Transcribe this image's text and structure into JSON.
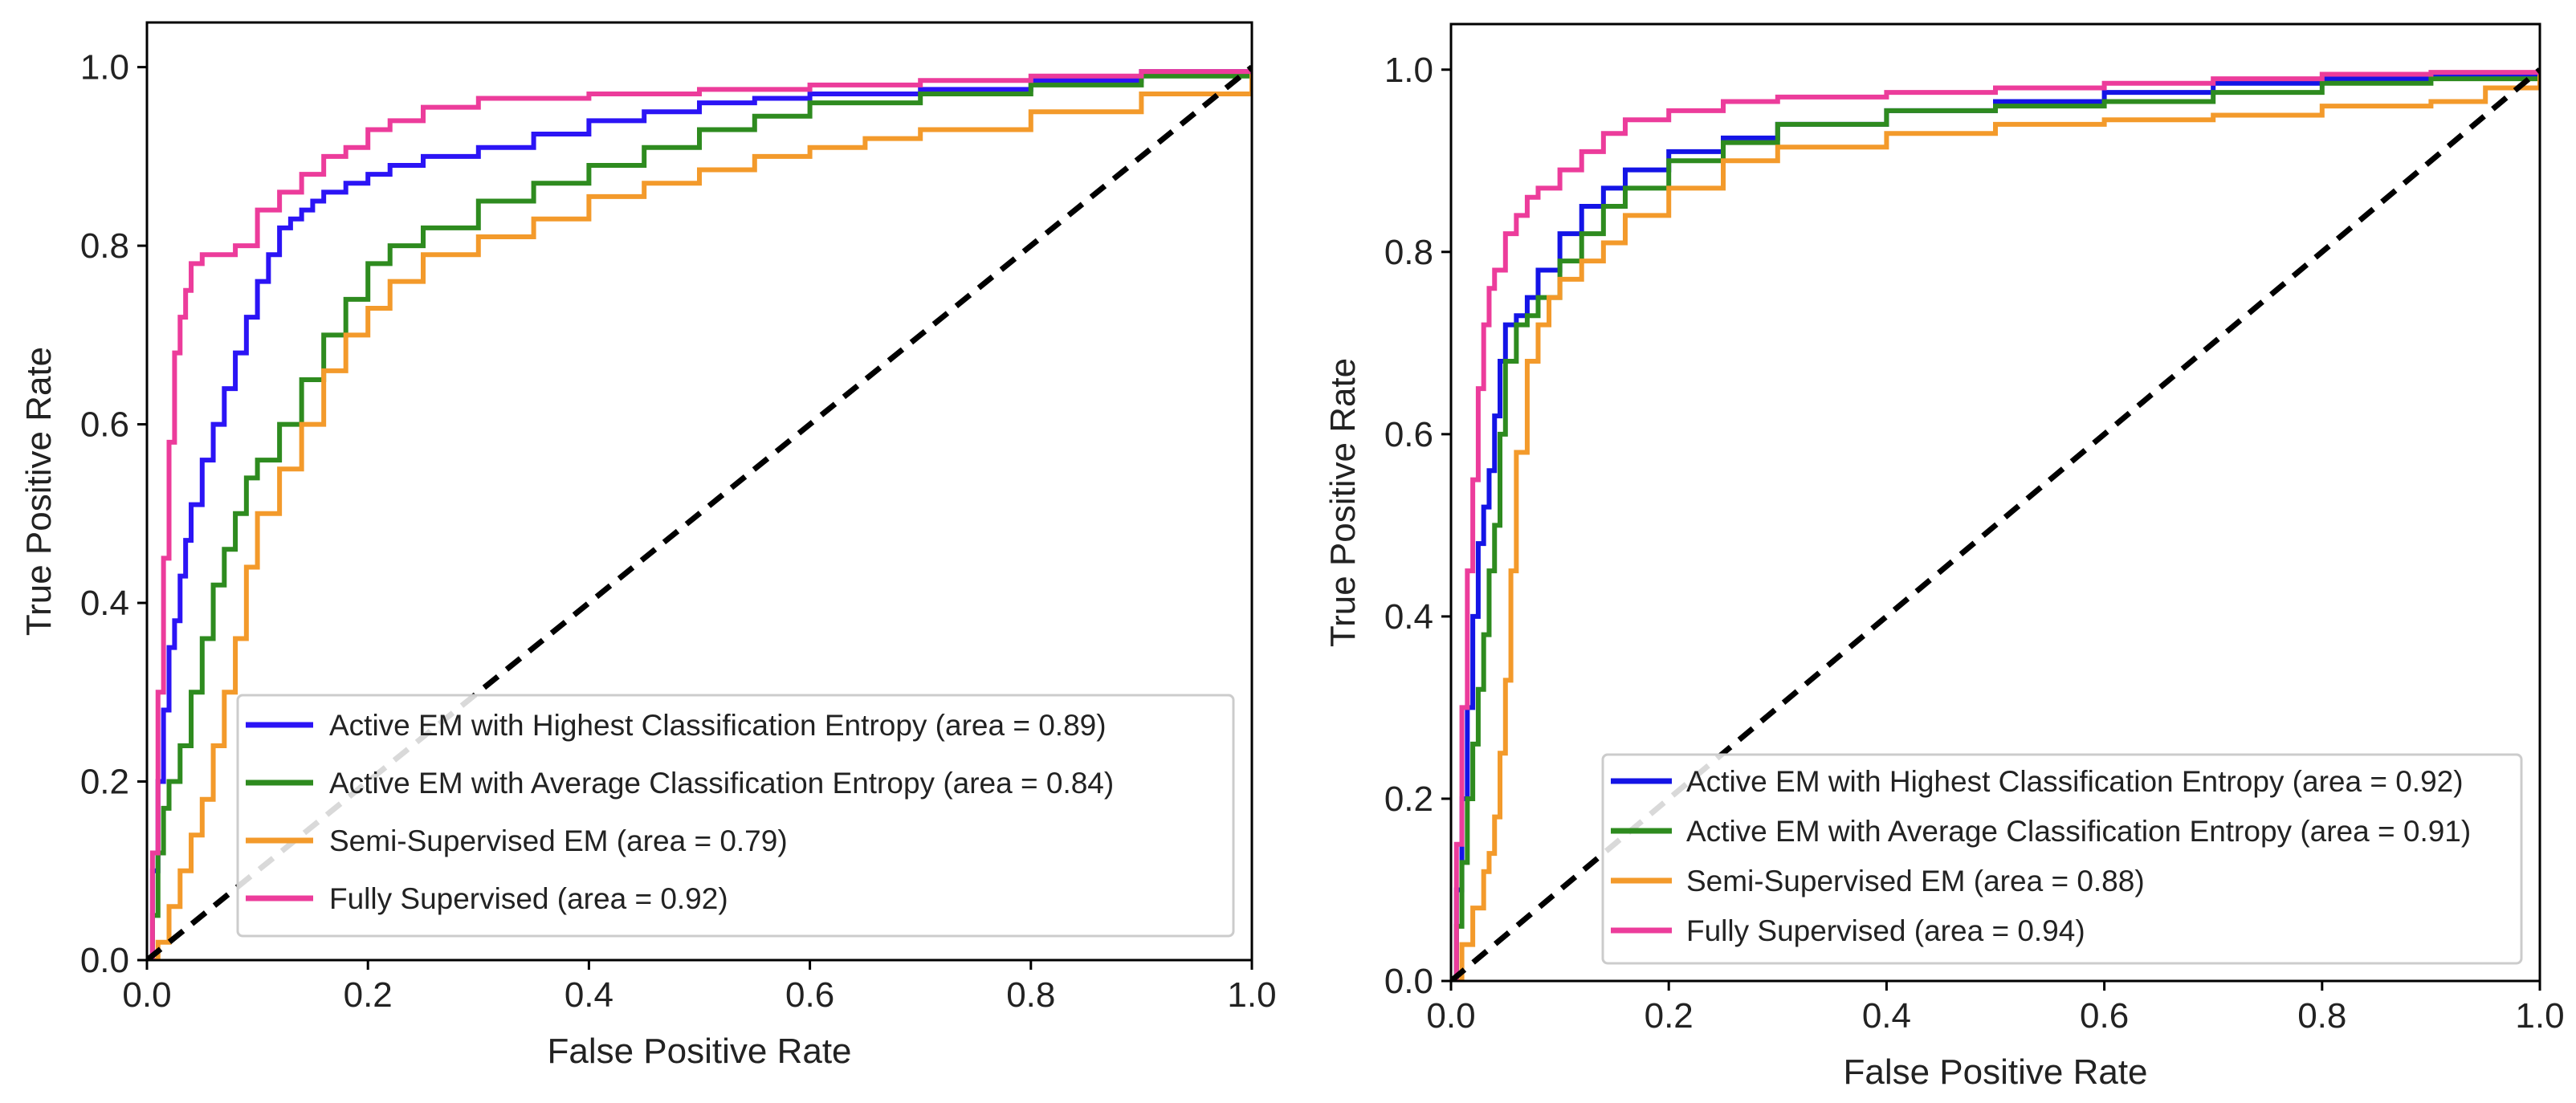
{
  "chart_data": [
    {
      "type": "line",
      "title": "",
      "xlabel": "False Positive Rate",
      "ylabel": "True Positive Rate",
      "xlim": [
        0.0,
        1.0
      ],
      "ylim": [
        0.0,
        1.05
      ],
      "xticks": [
        "0.0",
        "0.2",
        "0.4",
        "0.6",
        "0.8",
        "1.0"
      ],
      "yticks": [
        "0.0",
        "0.2",
        "0.4",
        "0.6",
        "0.8",
        "1.0"
      ],
      "grid": false,
      "legend_position": "lower-right",
      "series": [
        {
          "name": "Active EM with Highest Classification Entropy (area = 0.89)",
          "color": "#2b14f5",
          "x": [
            0.0,
            0.005,
            0.01,
            0.015,
            0.02,
            0.025,
            0.03,
            0.035,
            0.04,
            0.05,
            0.06,
            0.07,
            0.08,
            0.09,
            0.1,
            0.11,
            0.12,
            0.13,
            0.14,
            0.15,
            0.16,
            0.18,
            0.2,
            0.22,
            0.25,
            0.3,
            0.35,
            0.4,
            0.45,
            0.5,
            0.55,
            0.6,
            0.7,
            0.8,
            0.9,
            1.0
          ],
          "y": [
            0.0,
            0.1,
            0.2,
            0.28,
            0.35,
            0.38,
            0.43,
            0.47,
            0.51,
            0.56,
            0.6,
            0.64,
            0.68,
            0.72,
            0.76,
            0.79,
            0.82,
            0.83,
            0.84,
            0.85,
            0.86,
            0.87,
            0.88,
            0.89,
            0.9,
            0.91,
            0.925,
            0.94,
            0.95,
            0.96,
            0.965,
            0.97,
            0.975,
            0.985,
            0.995,
            1.0
          ]
        },
        {
          "name": "Active EM with Average Classification Entropy (area = 0.84)",
          "color": "#2e8b1f",
          "x": [
            0.0,
            0.005,
            0.01,
            0.015,
            0.02,
            0.03,
            0.04,
            0.05,
            0.06,
            0.07,
            0.08,
            0.09,
            0.1,
            0.12,
            0.14,
            0.16,
            0.18,
            0.2,
            0.22,
            0.25,
            0.3,
            0.35,
            0.4,
            0.45,
            0.5,
            0.55,
            0.6,
            0.7,
            0.8,
            0.9,
            1.0
          ],
          "y": [
            0.0,
            0.05,
            0.12,
            0.17,
            0.2,
            0.24,
            0.3,
            0.36,
            0.42,
            0.46,
            0.5,
            0.54,
            0.56,
            0.6,
            0.65,
            0.7,
            0.74,
            0.78,
            0.8,
            0.82,
            0.85,
            0.87,
            0.89,
            0.91,
            0.93,
            0.945,
            0.96,
            0.97,
            0.98,
            0.99,
            1.0
          ]
        },
        {
          "name": "Semi-Supervised EM (area = 0.79)",
          "color": "#f39a2b",
          "x": [
            0.0,
            0.01,
            0.02,
            0.03,
            0.04,
            0.05,
            0.06,
            0.07,
            0.08,
            0.09,
            0.1,
            0.12,
            0.14,
            0.16,
            0.18,
            0.2,
            0.22,
            0.25,
            0.3,
            0.35,
            0.4,
            0.45,
            0.5,
            0.55,
            0.6,
            0.65,
            0.7,
            0.8,
            0.9,
            1.0
          ],
          "y": [
            0.0,
            0.02,
            0.06,
            0.1,
            0.14,
            0.18,
            0.24,
            0.3,
            0.36,
            0.44,
            0.5,
            0.55,
            0.6,
            0.66,
            0.7,
            0.73,
            0.76,
            0.79,
            0.81,
            0.83,
            0.855,
            0.87,
            0.885,
            0.9,
            0.91,
            0.92,
            0.93,
            0.95,
            0.97,
            1.0
          ]
        },
        {
          "name": "Fully Supervised (area = 0.92)",
          "color": "#ec3c9b",
          "x": [
            0.0,
            0.005,
            0.01,
            0.015,
            0.02,
            0.025,
            0.03,
            0.035,
            0.04,
            0.05,
            0.06,
            0.08,
            0.1,
            0.12,
            0.14,
            0.16,
            0.18,
            0.2,
            0.22,
            0.25,
            0.3,
            0.4,
            0.5,
            0.6,
            0.7,
            0.8,
            0.9,
            1.0
          ],
          "y": [
            0.0,
            0.12,
            0.3,
            0.45,
            0.58,
            0.68,
            0.72,
            0.75,
            0.78,
            0.79,
            0.79,
            0.8,
            0.84,
            0.86,
            0.88,
            0.9,
            0.91,
            0.93,
            0.94,
            0.955,
            0.965,
            0.97,
            0.975,
            0.98,
            0.985,
            0.99,
            0.995,
            1.0
          ]
        }
      ],
      "reference_line": {
        "x": [
          0.0,
          1.0
        ],
        "y": [
          0.0,
          1.0
        ],
        "color": "#000000",
        "style": "dashed"
      }
    },
    {
      "type": "line",
      "title": "",
      "xlabel": "False Positive Rate",
      "ylabel": "True Positive Rate",
      "xlim": [
        0.0,
        1.0
      ],
      "ylim": [
        0.0,
        1.05
      ],
      "xticks": [
        "0.0",
        "0.2",
        "0.4",
        "0.6",
        "0.8",
        "1.0"
      ],
      "yticks": [
        "0.0",
        "0.2",
        "0.4",
        "0.6",
        "0.8",
        "1.0"
      ],
      "grid": false,
      "legend_position": "lower-right",
      "series": [
        {
          "name": "Active EM with Highest Classification Entropy (area = 0.92)",
          "color": "#1414e6",
          "x": [
            0.0,
            0.005,
            0.01,
            0.015,
            0.02,
            0.025,
            0.03,
            0.035,
            0.04,
            0.045,
            0.05,
            0.06,
            0.07,
            0.08,
            0.1,
            0.12,
            0.14,
            0.16,
            0.2,
            0.25,
            0.3,
            0.4,
            0.5,
            0.6,
            0.7,
            0.8,
            0.9,
            1.0
          ],
          "y": [
            0.0,
            0.1,
            0.2,
            0.3,
            0.4,
            0.48,
            0.52,
            0.56,
            0.62,
            0.68,
            0.72,
            0.73,
            0.75,
            0.78,
            0.82,
            0.85,
            0.87,
            0.89,
            0.91,
            0.925,
            0.94,
            0.955,
            0.965,
            0.975,
            0.985,
            0.99,
            0.995,
            1.0
          ]
        },
        {
          "name": "Active EM with Average Classification Entropy (area = 0.91)",
          "color": "#2e8b1f",
          "x": [
            0.0,
            0.005,
            0.01,
            0.015,
            0.02,
            0.025,
            0.03,
            0.035,
            0.04,
            0.045,
            0.05,
            0.06,
            0.07,
            0.08,
            0.1,
            0.12,
            0.14,
            0.16,
            0.2,
            0.25,
            0.3,
            0.4,
            0.5,
            0.6,
            0.7,
            0.8,
            0.9,
            1.0
          ],
          "y": [
            0.0,
            0.06,
            0.13,
            0.2,
            0.26,
            0.32,
            0.38,
            0.45,
            0.5,
            0.6,
            0.68,
            0.72,
            0.73,
            0.75,
            0.79,
            0.82,
            0.85,
            0.87,
            0.9,
            0.92,
            0.94,
            0.955,
            0.96,
            0.965,
            0.975,
            0.985,
            0.99,
            1.0
          ]
        },
        {
          "name": "Semi-Supervised EM (area = 0.88)",
          "color": "#f39a2b",
          "x": [
            0.0,
            0.01,
            0.02,
            0.03,
            0.035,
            0.04,
            0.045,
            0.05,
            0.055,
            0.06,
            0.07,
            0.08,
            0.09,
            0.1,
            0.12,
            0.14,
            0.16,
            0.2,
            0.25,
            0.3,
            0.4,
            0.5,
            0.6,
            0.7,
            0.8,
            0.9,
            0.95,
            1.0
          ],
          "y": [
            0.0,
            0.04,
            0.08,
            0.12,
            0.14,
            0.18,
            0.25,
            0.33,
            0.45,
            0.58,
            0.68,
            0.72,
            0.75,
            0.77,
            0.79,
            0.81,
            0.84,
            0.87,
            0.9,
            0.915,
            0.93,
            0.94,
            0.945,
            0.95,
            0.96,
            0.965,
            0.98,
            1.0
          ]
        },
        {
          "name": "Fully Supervised (area = 0.94)",
          "color": "#ec3c9b",
          "x": [
            0.0,
            0.005,
            0.01,
            0.015,
            0.02,
            0.025,
            0.03,
            0.035,
            0.04,
            0.05,
            0.06,
            0.07,
            0.08,
            0.1,
            0.12,
            0.14,
            0.16,
            0.2,
            0.25,
            0.3,
            0.4,
            0.5,
            0.6,
            0.7,
            0.8,
            0.9,
            1.0
          ],
          "y": [
            0.0,
            0.15,
            0.3,
            0.45,
            0.55,
            0.65,
            0.72,
            0.76,
            0.78,
            0.82,
            0.84,
            0.86,
            0.87,
            0.89,
            0.91,
            0.93,
            0.945,
            0.955,
            0.965,
            0.97,
            0.975,
            0.98,
            0.985,
            0.99,
            0.995,
            0.997,
            1.0
          ]
        }
      ],
      "reference_line": {
        "x": [
          0.0,
          1.0
        ],
        "y": [
          0.0,
          1.0
        ],
        "color": "#000000",
        "style": "dashed"
      }
    }
  ]
}
